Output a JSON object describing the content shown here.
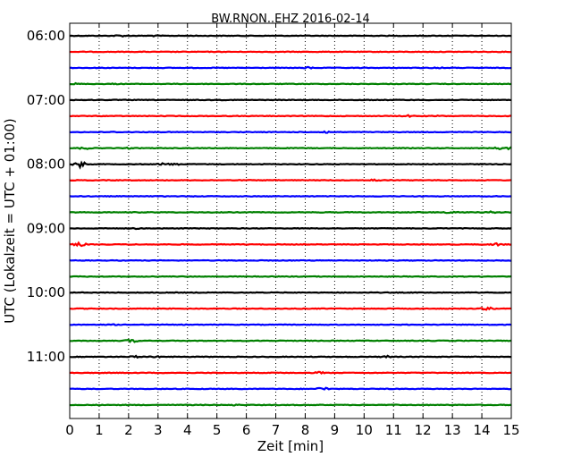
{
  "chart_data": {
    "type": "line",
    "title": "BW.RNON..EHZ 2016-02-14",
    "xlabel": "Zeit  [min]",
    "ylabel": "UTC (Lokalzeit = UTC + 01:00)",
    "xlim": [
      0,
      15
    ],
    "x_ticks": [
      0,
      1,
      2,
      3,
      4,
      5,
      6,
      7,
      8,
      9,
      10,
      11,
      12,
      13,
      14,
      15
    ],
    "x_tick_labels": [
      "0",
      "1",
      "2",
      "3",
      "4",
      "5",
      "6",
      "7",
      "8",
      "9",
      "10",
      "11",
      "12",
      "13",
      "14",
      "15"
    ],
    "y_tick_labels": [
      {
        "label": "06:00",
        "trace_index": 0
      },
      {
        "label": "07:00",
        "trace_index": 4
      },
      {
        "label": "08:00",
        "trace_index": 8
      },
      {
        "label": "09:00",
        "trace_index": 12
      },
      {
        "label": "10:00",
        "trace_index": 16
      },
      {
        "label": "11:00",
        "trace_index": 20
      }
    ],
    "grid": "vertical dotted",
    "series": [
      {
        "start": "06:00",
        "color": "#000000",
        "events": [
          [
            1.7,
            0.5
          ],
          [
            2.8,
            0.4
          ]
        ]
      },
      {
        "start": "06:15",
        "color": "#ff0000",
        "events": []
      },
      {
        "start": "06:30",
        "color": "#0000ff",
        "events": [
          [
            8.1,
            0.5
          ],
          [
            12.5,
            0.5
          ]
        ]
      },
      {
        "start": "06:45",
        "color": "#008000",
        "events": [
          [
            0.2,
            0.4
          ],
          [
            1.5,
            0.3
          ]
        ]
      },
      {
        "start": "07:00",
        "color": "#000000",
        "events": []
      },
      {
        "start": "07:15",
        "color": "#ff0000",
        "events": [
          [
            11.5,
            0.5
          ],
          [
            12.5,
            0.4
          ]
        ]
      },
      {
        "start": "07:30",
        "color": "#0000ff",
        "events": [
          [
            8.7,
            0.6
          ],
          [
            1.5,
            0.3
          ]
        ]
      },
      {
        "start": "07:45",
        "color": "#008000",
        "events": [
          [
            0.5,
            0.7
          ],
          [
            2.0,
            0.4
          ],
          [
            14.6,
            0.7
          ],
          [
            15.0,
            0.8
          ]
        ]
      },
      {
        "start": "08:00",
        "color": "#000000",
        "events": [
          [
            0.35,
            1.6
          ],
          [
            3.2,
            0.7
          ],
          [
            3.6,
            0.5
          ]
        ]
      },
      {
        "start": "08:15",
        "color": "#ff0000",
        "events": [
          [
            10.4,
            0.7
          ]
        ]
      },
      {
        "start": "08:30",
        "color": "#0000ff",
        "events": []
      },
      {
        "start": "08:45",
        "color": "#008000",
        "events": [
          [
            13.0,
            0.8
          ],
          [
            14.3,
            0.5
          ]
        ]
      },
      {
        "start": "09:00",
        "color": "#000000",
        "events": [
          [
            2.2,
            0.4
          ]
        ]
      },
      {
        "start": "09:15",
        "color": "#ff0000",
        "events": [
          [
            0.35,
            1.0
          ],
          [
            14.5,
            0.8
          ]
        ]
      },
      {
        "start": "09:30",
        "color": "#0000ff",
        "events": []
      },
      {
        "start": "09:45",
        "color": "#008000",
        "events": [
          [
            0.5,
            0.3
          ]
        ]
      },
      {
        "start": "10:00",
        "color": "#000000",
        "events": []
      },
      {
        "start": "10:15",
        "color": "#ff0000",
        "events": [
          [
            14.2,
            0.9
          ]
        ]
      },
      {
        "start": "10:30",
        "color": "#0000ff",
        "events": [
          [
            1.5,
            0.3
          ]
        ]
      },
      {
        "start": "10:45",
        "color": "#008000",
        "events": [
          [
            2.1,
            0.9
          ]
        ]
      },
      {
        "start": "11:00",
        "color": "#000000",
        "events": [
          [
            2.2,
            0.6
          ],
          [
            2.9,
            0.5
          ],
          [
            10.8,
            0.7
          ]
        ]
      },
      {
        "start": "11:15",
        "color": "#ff0000",
        "events": [
          [
            7.3,
            0.3
          ],
          [
            8.5,
            0.6
          ]
        ]
      },
      {
        "start": "11:30",
        "color": "#0000ff",
        "events": [
          [
            8.6,
            1.0
          ]
        ]
      },
      {
        "start": "11:45",
        "color": "#008000",
        "events": [
          [
            5.6,
            0.4
          ]
        ]
      }
    ]
  }
}
